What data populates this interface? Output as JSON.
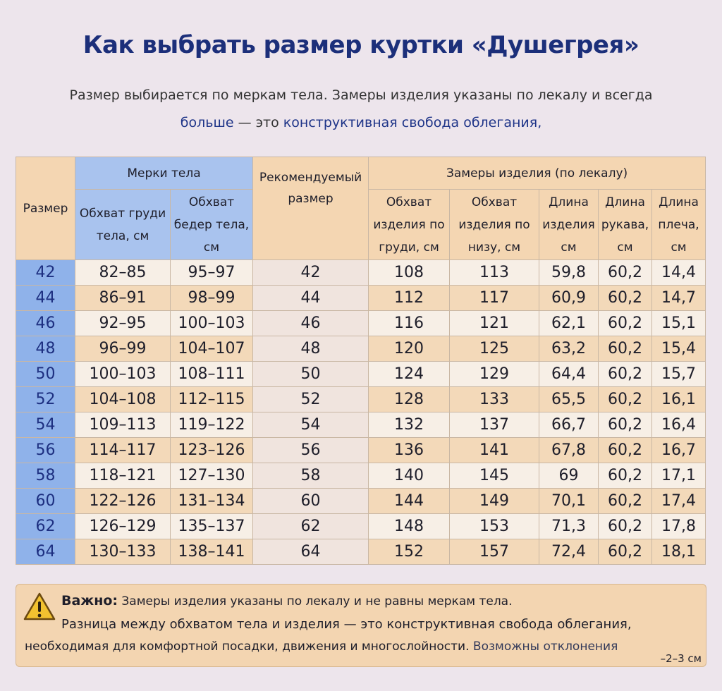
{
  "header": {
    "title": "Как выбрать размер куртки «Душегрея»",
    "intro_line1": "Размер выбирается по меркам тела. Замеры изделия указаны по лекалу и всегда",
    "intro_highlight1": "больше",
    "intro_dash": "— это",
    "intro_highlight2": "конструктивная свобода облегания,"
  },
  "table": {
    "size_header": "Размер",
    "body_group": "Мерки тела",
    "body_chest": "Обхват груди тела, см",
    "body_hips": "Обхват бедер тела, см",
    "recommended": "Рекомендуемый размер",
    "product_group": "Замеры изделия (по лекалу)",
    "product_chest": "Обхват изделия по груди, см",
    "product_bottom": "Обхват изделия по низу, см",
    "product_length": "Длина изделия см",
    "sleeve_length": "Длина рукава, см",
    "shoulder_length": "Длина плеча, см",
    "rows": [
      [
        "42",
        "82–85",
        "95–97",
        "42",
        "108",
        "113",
        "59,8",
        "60,2",
        "14,4"
      ],
      [
        "44",
        "86–91",
        "98–99",
        "44",
        "112",
        "117",
        "60,9",
        "60,2",
        "14,7"
      ],
      [
        "46",
        "92–95",
        "100–103",
        "46",
        "116",
        "121",
        "62,1",
        "60,2",
        "15,1"
      ],
      [
        "48",
        "96–99",
        "104–107",
        "48",
        "120",
        "125",
        "63,2",
        "60,2",
        "15,4"
      ],
      [
        "50",
        "100–103",
        "108–111",
        "50",
        "124",
        "129",
        "64,4",
        "60,2",
        "15,7"
      ],
      [
        "52",
        "104–108",
        "112–115",
        "52",
        "128",
        "133",
        "65,5",
        "60,2",
        "16,1"
      ],
      [
        "54",
        "109–113",
        "119–122",
        "54",
        "132",
        "137",
        "66,7",
        "60,2",
        "16,4"
      ],
      [
        "56",
        "114–117",
        "123–126",
        "56",
        "136",
        "141",
        "67,8",
        "60,2",
        "16,7"
      ],
      [
        "58",
        "118–121",
        "127–130",
        "58",
        "140",
        "145",
        "69",
        "60,2",
        "17,1"
      ],
      [
        "60",
        "122–126",
        "131–134",
        "60",
        "144",
        "149",
        "70,1",
        "60,2",
        "17,4"
      ],
      [
        "62",
        "126–129",
        "135–137",
        "62",
        "148",
        "153",
        "71,3",
        "60,2",
        "17,8"
      ],
      [
        "64",
        "130–133",
        "138–141",
        "64",
        "152",
        "157",
        "72,4",
        "60,2",
        "18,1"
      ]
    ]
  },
  "note": {
    "label": "Важно:",
    "line1": "Замеры изделия указаны по лекалу и не равны меркам тела.",
    "line2": "Разница между обхватом тела и изделия — это конструктивная свобода облегания,",
    "line3": "необходимая для комфортной посадки, движения и многослойности.",
    "line3_tail": "Возможны отклонения",
    "tolerance": "–2–3 см"
  }
}
